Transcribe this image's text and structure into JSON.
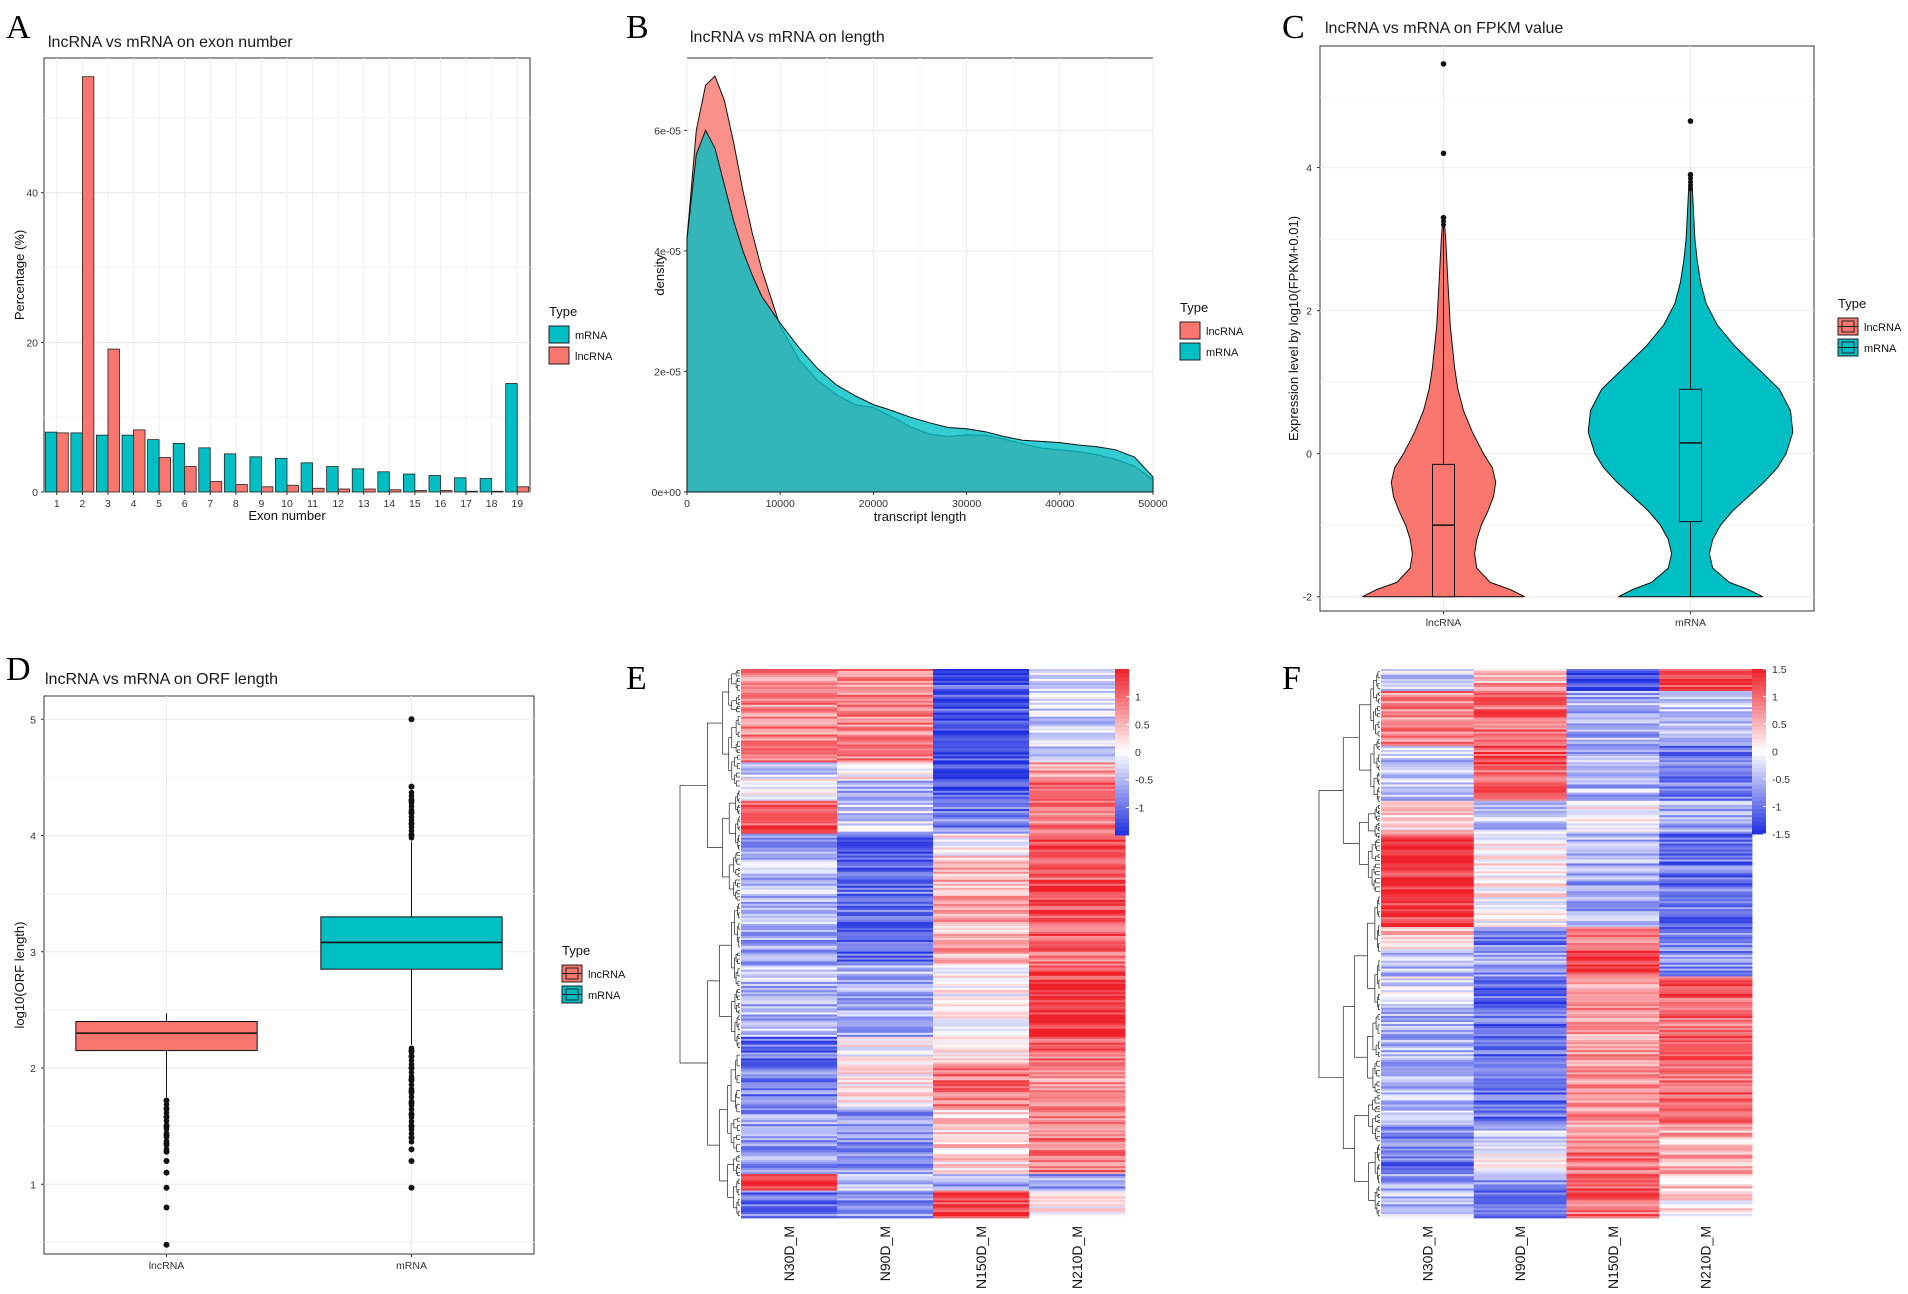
{
  "colors": {
    "lncRNA": "#F8766D",
    "mRNA": "#00BFC4",
    "heat_low": "#1f2fe0",
    "heat_mid": "#ffffff",
    "heat_high": "#f0202a"
  },
  "panels": {
    "A": "A",
    "B": "B",
    "C": "C",
    "D": "D",
    "E": "E",
    "F": "F"
  },
  "chart_data": [
    {
      "id": "A",
      "type": "bar",
      "title": "lncRNA vs mRNA on exon number",
      "xlabel": "Exon number",
      "ylabel": "Percentage (%)",
      "ylim": [
        0,
        58
      ],
      "yticks": [
        0,
        20,
        40
      ],
      "categories": [
        "1",
        "2",
        "3",
        "4",
        "5",
        "6",
        "7",
        "8",
        "9",
        "10",
        "11",
        "12",
        "13",
        "14",
        "15",
        "16",
        "17",
        "18",
        "19"
      ],
      "series": [
        {
          "name": "mRNA",
          "values": [
            8.0,
            7.9,
            7.6,
            7.6,
            7.0,
            6.5,
            5.9,
            5.1,
            4.7,
            4.5,
            3.9,
            3.4,
            3.1,
            2.7,
            2.4,
            2.2,
            1.9,
            1.8,
            14.5
          ]
        },
        {
          "name": "lncRNA",
          "values": [
            7.9,
            55.5,
            19.1,
            8.3,
            4.6,
            3.4,
            1.4,
            1.0,
            0.7,
            0.9,
            0.5,
            0.4,
            0.4,
            0.3,
            0.2,
            0.2,
            0.1,
            0.1,
            0.7
          ]
        }
      ],
      "legend": {
        "title": "Type",
        "items": [
          "mRNA",
          "lncRNA"
        ]
      }
    },
    {
      "id": "B",
      "type": "area",
      "title": "lncRNA vs mRNA on length",
      "xlabel": "transcript length",
      "ylabel": "density",
      "xlim": [
        0,
        50000
      ],
      "ylim": [
        0,
        7.2e-05
      ],
      "xticks": [
        0,
        10000,
        20000,
        30000,
        40000,
        50000
      ],
      "yticks": [
        0,
        2e-05,
        4e-05,
        6e-05
      ],
      "ytick_labels": [
        "0e+00",
        "2e-05",
        "4e-05",
        "6e-05"
      ],
      "x": [
        0,
        1000,
        2000,
        3000,
        4000,
        5000,
        6000,
        7000,
        8000,
        10000,
        12000,
        14000,
        16000,
        18000,
        20000,
        22000,
        24000,
        26000,
        28000,
        30000,
        32000,
        34000,
        36000,
        38000,
        40000,
        42000,
        44000,
        46000,
        48000,
        50000
      ],
      "series": [
        {
          "name": "lncRNA",
          "values": [
            4.2e-05,
            6e-05,
            6.75e-05,
            6.9e-05,
            6.5e-05,
            5.8e-05,
            5e-05,
            4.3e-05,
            3.7e-05,
            2.75e-05,
            2.2e-05,
            1.85e-05,
            1.62e-05,
            1.45e-05,
            1.4e-05,
            1.25e-05,
            1.08e-05,
            9.6e-06,
            9.2e-06,
            9.5e-06,
            9.4e-06,
            8.8e-06,
            8e-06,
            7.3e-06,
            7e-06,
            6.7e-06,
            6.2e-06,
            5.4e-06,
            4.3e-06,
            2e-06
          ]
        },
        {
          "name": "mRNA",
          "values": [
            4.2e-05,
            5.6e-05,
            6e-05,
            5.7e-05,
            5.1e-05,
            4.5e-05,
            4e-05,
            3.6e-05,
            3.25e-05,
            2.8e-05,
            2.4e-05,
            2.05e-05,
            1.78e-05,
            1.6e-05,
            1.45e-05,
            1.35e-05,
            1.24e-05,
            1.15e-05,
            1.07e-05,
            1.05e-05,
            1e-05,
            9.2e-06,
            8.6e-06,
            8.4e-06,
            8.2e-06,
            7.8e-06,
            7.5e-06,
            7e-06,
            5.8e-06,
            2.5e-06
          ]
        }
      ],
      "legend": {
        "title": "Type",
        "items": [
          "lncRNA",
          "mRNA"
        ]
      }
    },
    {
      "id": "C",
      "type": "violin",
      "title": "lncRNA vs mRNA on FPKM value",
      "xlabel": "",
      "ylabel": "Expression level by log10(FPKM+0.01)",
      "ylim": [
        -2.2,
        5.7
      ],
      "yticks": [
        -2,
        0,
        2,
        4
      ],
      "categories": [
        "lncRNA",
        "mRNA"
      ],
      "groups": [
        {
          "name": "lncRNA",
          "density_y": [
            -2.0,
            -1.9,
            -1.8,
            -1.6,
            -1.4,
            -1.2,
            -1.0,
            -0.8,
            -0.6,
            -0.4,
            -0.2,
            0.0,
            0.3,
            0.6,
            0.9,
            1.2,
            1.5,
            1.8,
            2.1,
            2.4,
            2.7,
            3.0,
            3.2
          ],
          "density_w": [
            0.73,
            0.6,
            0.42,
            0.3,
            0.28,
            0.3,
            0.34,
            0.4,
            0.45,
            0.47,
            0.44,
            0.36,
            0.26,
            0.18,
            0.13,
            0.1,
            0.08,
            0.06,
            0.05,
            0.04,
            0.03,
            0.02,
            0.01
          ],
          "q1": -2.0,
          "median": -1.0,
          "q3": -0.15,
          "whisker_low": -2.0,
          "whisker_high": 3.2,
          "outliers": [
            3.3,
            4.2,
            5.45
          ]
        },
        {
          "name": "mRNA",
          "density_y": [
            -2.0,
            -1.9,
            -1.8,
            -1.6,
            -1.4,
            -1.2,
            -1.0,
            -0.8,
            -0.6,
            -0.4,
            -0.2,
            0.0,
            0.3,
            0.6,
            0.9,
            1.2,
            1.5,
            1.8,
            2.1,
            2.4,
            2.7,
            3.0,
            3.3,
            3.6,
            3.9
          ],
          "density_w": [
            0.65,
            0.52,
            0.35,
            0.2,
            0.17,
            0.2,
            0.27,
            0.38,
            0.52,
            0.66,
            0.78,
            0.86,
            0.92,
            0.9,
            0.8,
            0.6,
            0.4,
            0.24,
            0.14,
            0.09,
            0.06,
            0.04,
            0.03,
            0.02,
            0.01
          ],
          "q1": -0.95,
          "median": 0.15,
          "q3": 0.9,
          "whisker_low": -2.0,
          "whisker_high": 3.7,
          "outliers": [
            3.9,
            4.65
          ]
        }
      ],
      "legend": {
        "title": "Type",
        "items": [
          "lncRNA",
          "mRNA"
        ]
      }
    },
    {
      "id": "D",
      "type": "box",
      "title": "lncRNA vs mRNA on ORF length",
      "xlabel": "",
      "ylabel": "log10(ORF length)",
      "ylim": [
        0.4,
        5.2
      ],
      "yticks": [
        1,
        2,
        3,
        4,
        5
      ],
      "categories": [
        "lncRNA",
        "mRNA"
      ],
      "groups": [
        {
          "name": "lncRNA",
          "q1": 2.15,
          "median": 2.3,
          "q3": 2.4,
          "whisker_low": 1.75,
          "whisker_high": 2.47,
          "outliers": [
            0.48,
            0.8,
            0.97,
            1.1,
            1.2,
            1.28,
            1.35,
            1.42,
            1.5,
            1.58,
            1.65,
            1.72
          ]
        },
        {
          "name": "mRNA",
          "q1": 2.85,
          "median": 3.08,
          "q3": 3.3,
          "whisker_low": 2.2,
          "whisker_high": 3.95,
          "outliers": [
            0.97,
            1.2,
            1.3,
            1.4,
            1.5,
            1.6,
            1.7,
            1.8,
            1.9,
            2.0,
            2.1,
            2.15,
            4.0,
            4.1,
            4.2,
            4.3,
            4.42,
            5.0
          ]
        }
      ],
      "legend": {
        "title": "Type",
        "items": [
          "lncRNA",
          "mRNA"
        ]
      }
    },
    {
      "id": "E",
      "type": "heatmap",
      "columns": [
        "N30D_M",
        "N90D_M",
        "N150D_M",
        "N210D_M"
      ],
      "scale_min": -1.5,
      "scale_max": 1.5,
      "colorbar_ticks": [
        1,
        0.5,
        0,
        -0.5,
        -1
      ],
      "colorbar_labels": [
        "1",
        "0.5",
        "0",
        "-0.5",
        "-1"
      ],
      "blocks": [
        {
          "frac": 0.17,
          "values": [
            0.8,
            0.8,
            -1.2,
            -0.3
          ]
        },
        {
          "frac": 0.03,
          "values": [
            -0.3,
            0.1,
            -1.3,
            0.6
          ]
        },
        {
          "frac": 0.04,
          "values": [
            0.1,
            -0.6,
            -1.2,
            1.0
          ]
        },
        {
          "frac": 0.06,
          "values": [
            1.2,
            -0.3,
            -0.9,
            0.9
          ]
        },
        {
          "frac": 0.04,
          "values": [
            -0.6,
            -1.2,
            0.1,
            1.3
          ]
        },
        {
          "frac": 0.15,
          "values": [
            -0.5,
            -1.0,
            0.5,
            1.1
          ]
        },
        {
          "frac": 0.05,
          "values": [
            -0.6,
            -1.0,
            0.6,
            0.9
          ]
        },
        {
          "frac": 0.03,
          "values": [
            -0.2,
            -0.5,
            0.0,
            1.3
          ]
        },
        {
          "frac": 0.1,
          "values": [
            -0.5,
            -0.6,
            0.0,
            1.4
          ]
        },
        {
          "frac": 0.05,
          "values": [
            -1.0,
            0.0,
            0.2,
            1.0
          ]
        },
        {
          "frac": 0.08,
          "values": [
            -0.9,
            0.1,
            0.9,
            0.6
          ]
        },
        {
          "frac": 0.12,
          "values": [
            -0.7,
            -0.7,
            0.3,
            0.9
          ]
        },
        {
          "frac": 0.03,
          "values": [
            1.2,
            -0.5,
            -0.6,
            -0.7
          ]
        },
        {
          "frac": 0.05,
          "values": [
            -1.0,
            -0.8,
            1.3,
            0.1
          ]
        }
      ]
    },
    {
      "id": "F",
      "type": "heatmap",
      "columns": [
        "N30D_M",
        "N90D_M",
        "N150D_M",
        "N210D_M"
      ],
      "scale_min": -1.5,
      "scale_max": 1.5,
      "colorbar_ticks": [
        1.5,
        1,
        0.5,
        0,
        -0.5,
        -1,
        -1.5
      ],
      "colorbar_labels": [
        "1.5",
        "1",
        "0.5",
        "0",
        "-0.5",
        "-1",
        "-1.5"
      ],
      "blocks": [
        {
          "frac": 0.04,
          "values": [
            -0.3,
            0.6,
            -1.2,
            1.3
          ]
        },
        {
          "frac": 0.1,
          "values": [
            0.8,
            1.0,
            -0.6,
            -0.4
          ]
        },
        {
          "frac": 0.1,
          "values": [
            -0.4,
            1.1,
            -0.5,
            -1.0
          ]
        },
        {
          "frac": 0.06,
          "values": [
            0.2,
            -0.4,
            0.0,
            -0.6
          ]
        },
        {
          "frac": 0.17,
          "values": [
            1.3,
            0.1,
            -0.6,
            -1.0
          ]
        },
        {
          "frac": 0.04,
          "values": [
            0.4,
            -0.9,
            0.8,
            -0.9
          ]
        },
        {
          "frac": 0.05,
          "values": [
            -0.4,
            -0.7,
            1.2,
            -0.8
          ]
        },
        {
          "frac": 0.05,
          "values": [
            -0.2,
            -1.1,
            0.4,
            1.1
          ]
        },
        {
          "frac": 0.22,
          "values": [
            -0.5,
            -1.0,
            0.7,
            1.0
          ]
        },
        {
          "frac": 0.04,
          "values": [
            -0.8,
            -0.4,
            0.6,
            0.5
          ]
        },
        {
          "frac": 0.05,
          "values": [
            -1.0,
            0.0,
            0.9,
            0.6
          ]
        },
        {
          "frac": 0.03,
          "values": [
            -0.6,
            -0.6,
            1.1,
            0.3
          ]
        },
        {
          "frac": 0.05,
          "values": [
            -0.5,
            -0.9,
            1.0,
            0.2
          ]
        }
      ]
    }
  ]
}
